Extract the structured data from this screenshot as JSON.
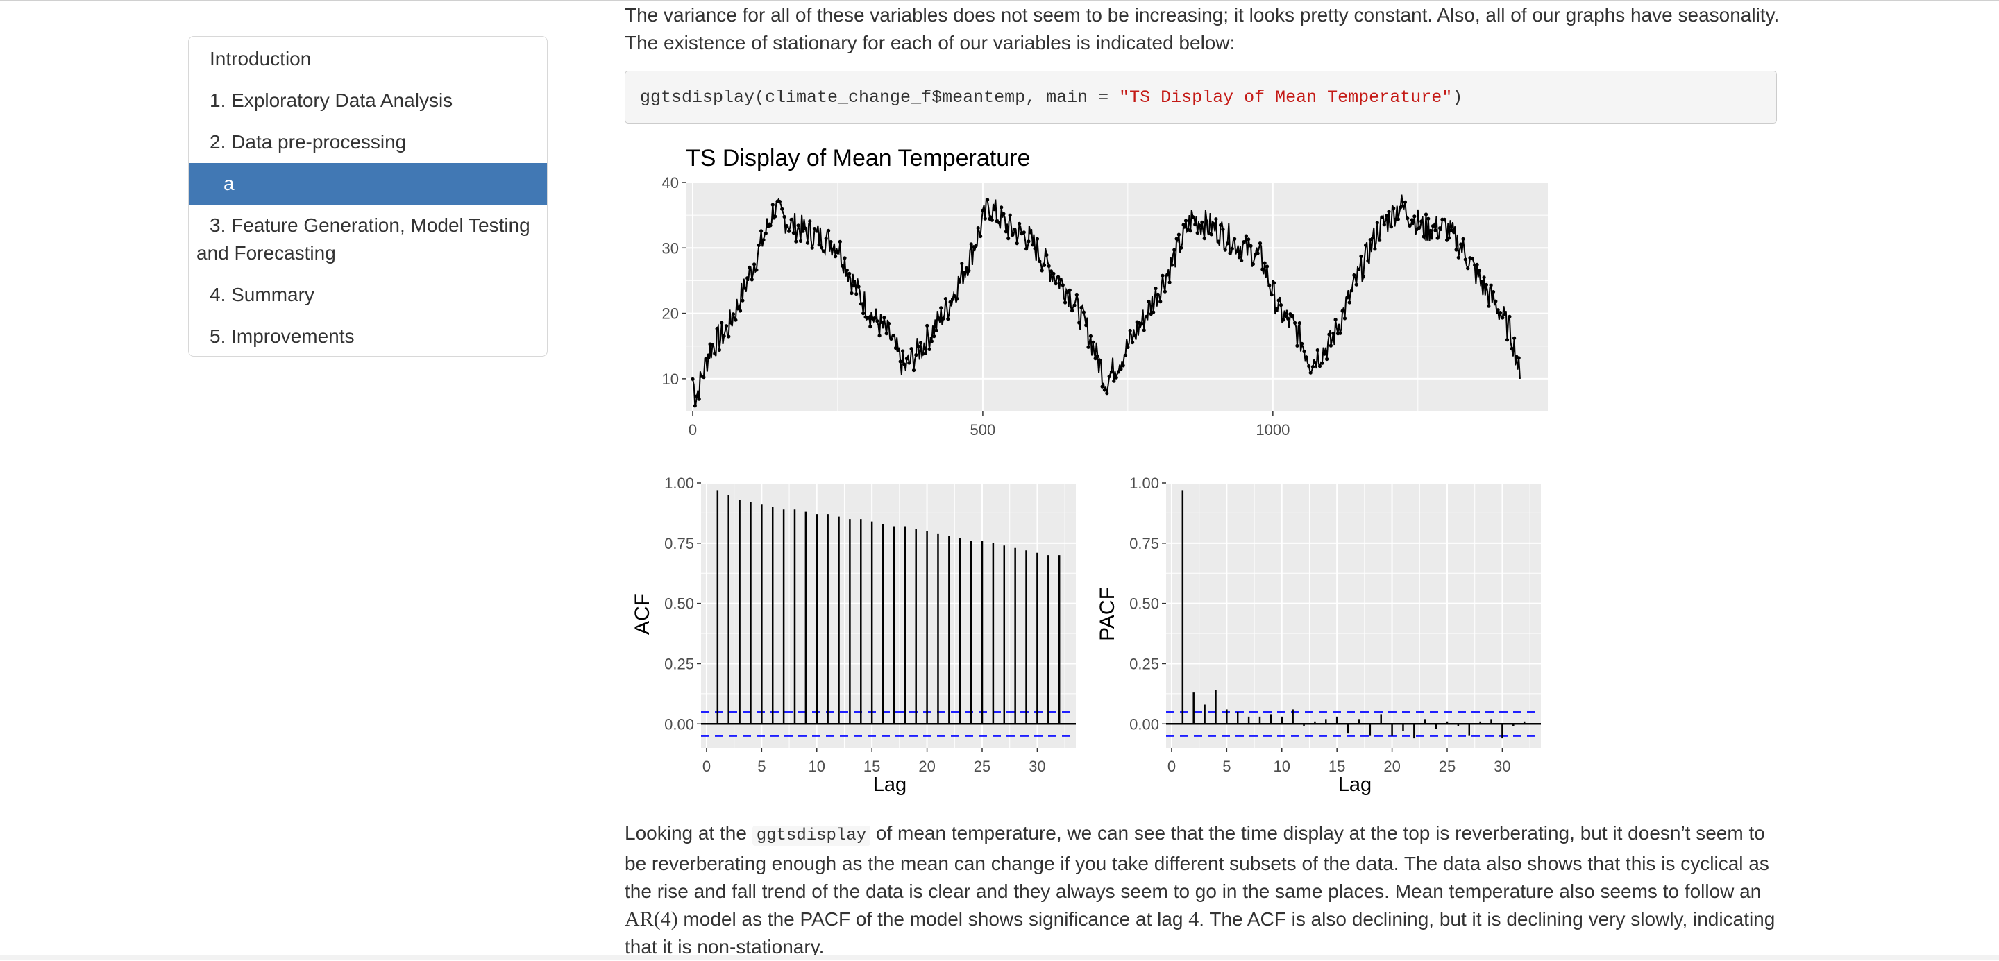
{
  "toc": {
    "items": [
      {
        "label": "Introduction"
      },
      {
        "label": "1. Exploratory Data Analysis"
      },
      {
        "label": "2. Data pre-processing"
      },
      {
        "label": "a",
        "active": true
      },
      {
        "label": "3. Feature Generation, Model Testing and Forecasting"
      },
      {
        "label": "4. Summary"
      },
      {
        "label": "5. Improvements"
      }
    ],
    "active_color": "#4178b4"
  },
  "content": {
    "intro_text": "The variance for all of these variables does not seem to be increasing; it looks pretty constant. Also, all of our graphs have seasonality. The existence of stationary for each of our variables is indicated below:",
    "code": {
      "prefix": "ggtsdisplay(climate_change_f$meantemp, main = ",
      "string": "\"TS Display of Mean Temperature\"",
      "suffix": ")"
    },
    "analysis": {
      "part1": "Looking at the ",
      "inline_code": "ggtsdisplay",
      "part2": " of mean temperature, we can see that the time display at the top is reverberating, but it doesn’t seem to be reverberating enough as the mean can change if you take different subsets of the data. The data also shows that this is cyclical as the rise and fall trend of the data is clear and they always seem to go in the same places. Mean temperature also seems to follow an ",
      "math_model": "AR(4)",
      "part3": " model as the PACF of the model shows significance at lag ",
      "math_lag": "4",
      "part4": ". The ACF is also declining, but it is declining very slowly, indicating that it is non-stationary."
    }
  },
  "chart_data": [
    {
      "type": "line",
      "title": "TS Display of Mean Temperature",
      "xlabel": "",
      "ylabel": "",
      "xlim": [
        0,
        1462
      ],
      "ylim": [
        5,
        40
      ],
      "x_ticks": [
        0,
        500,
        1000
      ],
      "y_ticks": [
        10,
        20,
        30,
        40
      ],
      "seasonal_anchor_points": [
        {
          "x": 0,
          "y": 10.0
        },
        {
          "x": 5,
          "y": 7.0
        },
        {
          "x": 30,
          "y": 14.5
        },
        {
          "x": 60,
          "y": 17.5
        },
        {
          "x": 90,
          "y": 24.0
        },
        {
          "x": 120,
          "y": 31.0
        },
        {
          "x": 140,
          "y": 36.0
        },
        {
          "x": 170,
          "y": 33.5
        },
        {
          "x": 210,
          "y": 32.0
        },
        {
          "x": 250,
          "y": 30.5
        },
        {
          "x": 280,
          "y": 24.0
        },
        {
          "x": 310,
          "y": 19.5
        },
        {
          "x": 340,
          "y": 16.5
        },
        {
          "x": 365,
          "y": 11.5
        },
        {
          "x": 400,
          "y": 15.5
        },
        {
          "x": 440,
          "y": 21.0
        },
        {
          "x": 480,
          "y": 29.0
        },
        {
          "x": 510,
          "y": 36.5
        },
        {
          "x": 545,
          "y": 33.0
        },
        {
          "x": 580,
          "y": 31.5
        },
        {
          "x": 610,
          "y": 27.5
        },
        {
          "x": 650,
          "y": 23.0
        },
        {
          "x": 680,
          "y": 17.5
        },
        {
          "x": 712,
          "y": 9.5
        },
        {
          "x": 740,
          "y": 13.5
        },
        {
          "x": 780,
          "y": 19.5
        },
        {
          "x": 820,
          "y": 26.5
        },
        {
          "x": 860,
          "y": 34.5
        },
        {
          "x": 900,
          "y": 33.0
        },
        {
          "x": 940,
          "y": 30.5
        },
        {
          "x": 980,
          "y": 28.5
        },
        {
          "x": 1010,
          "y": 20.5
        },
        {
          "x": 1040,
          "y": 17.5
        },
        {
          "x": 1065,
          "y": 12.5
        },
        {
          "x": 1100,
          "y": 15.5
        },
        {
          "x": 1140,
          "y": 24.0
        },
        {
          "x": 1180,
          "y": 32.5
        },
        {
          "x": 1220,
          "y": 36.5
        },
        {
          "x": 1260,
          "y": 33.0
        },
        {
          "x": 1300,
          "y": 33.0
        },
        {
          "x": 1330,
          "y": 29.5
        },
        {
          "x": 1360,
          "y": 24.5
        },
        {
          "x": 1390,
          "y": 20.5
        },
        {
          "x": 1410,
          "y": 17.0
        },
        {
          "x": 1420,
          "y": 13.5
        },
        {
          "x": 1426,
          "y": 10.0
        }
      ],
      "grid": true,
      "line_color": "#000000",
      "background": "#ebebeb"
    },
    {
      "type": "bar",
      "ylabel": "ACF",
      "xlabel": "Lag",
      "lags": [
        1,
        2,
        3,
        4,
        5,
        6,
        7,
        8,
        9,
        10,
        11,
        12,
        13,
        14,
        15,
        16,
        17,
        18,
        19,
        20,
        21,
        22,
        23,
        24,
        25,
        26,
        27,
        28,
        29,
        30,
        31,
        32
      ],
      "values": [
        0.97,
        0.95,
        0.93,
        0.92,
        0.91,
        0.9,
        0.89,
        0.89,
        0.88,
        0.87,
        0.87,
        0.86,
        0.85,
        0.85,
        0.84,
        0.83,
        0.82,
        0.82,
        0.81,
        0.8,
        0.79,
        0.78,
        0.77,
        0.76,
        0.76,
        0.75,
        0.74,
        0.73,
        0.72,
        0.71,
        0.7,
        0.7
      ],
      "ci": 0.05,
      "xlim": [
        -0.5,
        33.5
      ],
      "ylim": [
        -0.1,
        1.0
      ],
      "x_ticks": [
        0,
        5,
        10,
        15,
        20,
        25,
        30
      ],
      "y_ticks": [
        "0.00",
        "0.25",
        "0.50",
        "0.75",
        "1.00"
      ],
      "ci_color": "#1f1fff",
      "grid": true
    },
    {
      "type": "bar",
      "ylabel": "PACF",
      "xlabel": "Lag",
      "lags": [
        1,
        2,
        3,
        4,
        5,
        6,
        7,
        8,
        9,
        10,
        11,
        12,
        13,
        14,
        15,
        16,
        17,
        18,
        19,
        20,
        21,
        22,
        23,
        24,
        25,
        26,
        27,
        28,
        29,
        30,
        31,
        32
      ],
      "values": [
        0.97,
        0.13,
        0.08,
        0.14,
        0.06,
        0.05,
        0.03,
        0.03,
        0.04,
        0.03,
        0.06,
        -0.01,
        0.01,
        0.02,
        0.03,
        -0.04,
        0.02,
        -0.05,
        0.04,
        -0.05,
        -0.03,
        -0.06,
        0.02,
        -0.02,
        0.01,
        -0.01,
        -0.05,
        0.01,
        0.02,
        -0.06,
        -0.01,
        0.01
      ],
      "ci": 0.05,
      "xlim": [
        -0.5,
        33.5
      ],
      "ylim": [
        -0.1,
        1.0
      ],
      "x_ticks": [
        0,
        5,
        10,
        15,
        20,
        25,
        30
      ],
      "y_ticks": [
        "0.00",
        "0.25",
        "0.50",
        "0.75",
        "1.00"
      ],
      "ci_color": "#1f1fff",
      "grid": true
    }
  ]
}
